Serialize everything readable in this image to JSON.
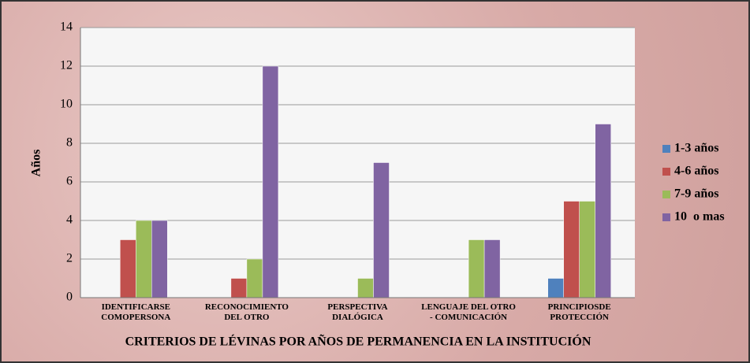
{
  "chart_data": {
    "type": "bar",
    "x_label": "CRITERIOS DE LÉVINAS POR AÑOS DE PERMANENCIA EN LA INSTITUCIÓN",
    "y_label": "Años",
    "categories": [
      "IDENTIFICARSE\nCOMOPERSONA",
      "RECONOCIMIENTO\nDEL OTRO",
      "PERSPECTIVA\nDIALÓGICA",
      "LENGUAJE DEL OTRO\n- COMUNICACIÓN",
      "PRINCIPIOSDE\nPROTECCIÓN"
    ],
    "series": [
      {
        "name": "1-3 años",
        "color": "#4f81bd",
        "values": [
          0,
          0,
          0,
          0,
          1
        ]
      },
      {
        "name": "4-6 años",
        "color": "#c0504d",
        "values": [
          3,
          1,
          0,
          0,
          5
        ]
      },
      {
        "name": "7-9 años",
        "color": "#9bbb59",
        "values": [
          4,
          2,
          1,
          3,
          5
        ]
      },
      {
        "name": "10  o mas",
        "color": "#8064a2",
        "values": [
          4,
          12,
          7,
          3,
          9
        ]
      }
    ],
    "ylim": [
      0,
      14
    ],
    "yticks": [
      0,
      2,
      4,
      6,
      8,
      10,
      12,
      14
    ],
    "grid": true,
    "legend": "right"
  }
}
